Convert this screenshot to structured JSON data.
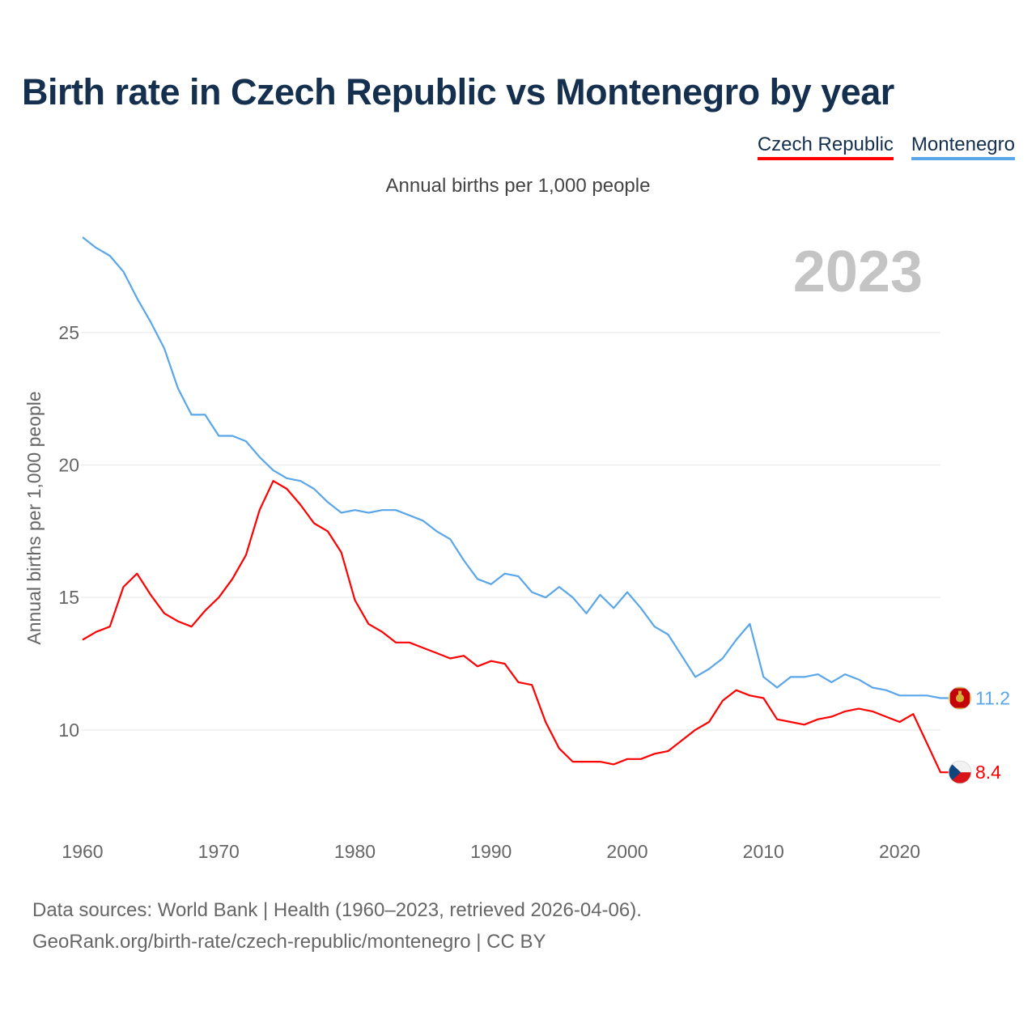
{
  "title": "Birth rate in Czech Republic vs Montenegro by year",
  "subtitle": "Annual births per 1,000 people",
  "footer": {
    "line1": "Data sources: World Bank | Health (1960–2023, retrieved 2026-04-06).",
    "line2": "GeoRank.org/birth-rate/czech-republic/montenegro | CC BY"
  },
  "colors": {
    "czech": "#ff0000",
    "montenegro": "#5aa6e8",
    "title": "#15304f",
    "year_watermark": "#c4c4c4"
  },
  "chart_data": {
    "type": "line",
    "title": "Birth rate in Czech Republic vs Montenegro by year",
    "ylabel": "Annual births per 1,000 people",
    "xlabel": "",
    "year_label": "2023",
    "xlim": [
      1960,
      2023
    ],
    "ylim": [
      7,
      29
    ],
    "x_ticks": [
      1960,
      1970,
      1980,
      1990,
      2000,
      2010,
      2020
    ],
    "y_ticks": [
      10,
      15,
      20,
      25
    ],
    "legend_position": "top-right",
    "x": [
      1960,
      1961,
      1962,
      1963,
      1964,
      1965,
      1966,
      1967,
      1968,
      1969,
      1970,
      1971,
      1972,
      1973,
      1974,
      1975,
      1976,
      1977,
      1978,
      1979,
      1980,
      1981,
      1982,
      1983,
      1984,
      1985,
      1986,
      1987,
      1988,
      1989,
      1990,
      1991,
      1992,
      1993,
      1994,
      1995,
      1996,
      1997,
      1998,
      1999,
      2000,
      2001,
      2002,
      2003,
      2004,
      2005,
      2006,
      2007,
      2008,
      2009,
      2010,
      2011,
      2012,
      2013,
      2014,
      2015,
      2016,
      2017,
      2018,
      2019,
      2020,
      2021,
      2022,
      2023
    ],
    "series": [
      {
        "name": "Czech Republic",
        "color": "#ff0000",
        "end_label": "8.4",
        "values": [
          13.4,
          13.7,
          13.9,
          15.4,
          15.9,
          15.1,
          14.4,
          14.1,
          13.9,
          14.5,
          15.0,
          15.7,
          16.6,
          18.3,
          19.4,
          19.1,
          18.5,
          17.8,
          17.5,
          16.7,
          14.9,
          14.0,
          13.7,
          13.3,
          13.3,
          13.1,
          12.9,
          12.7,
          12.8,
          12.4,
          12.6,
          12.5,
          11.8,
          11.7,
          10.3,
          9.3,
          8.8,
          8.8,
          8.8,
          8.7,
          8.9,
          8.9,
          9.1,
          9.2,
          9.6,
          10.0,
          10.3,
          11.1,
          11.5,
          11.3,
          11.2,
          10.4,
          10.3,
          10.2,
          10.4,
          10.5,
          10.7,
          10.8,
          10.7,
          10.5,
          10.3,
          10.6,
          9.5,
          8.4
        ]
      },
      {
        "name": "Montenegro",
        "color": "#5aa6e8",
        "end_label": "11.2",
        "values": [
          28.6,
          28.2,
          27.9,
          27.3,
          26.3,
          25.4,
          24.4,
          22.9,
          21.9,
          21.9,
          21.1,
          21.1,
          20.9,
          20.3,
          19.8,
          19.5,
          19.4,
          19.1,
          18.6,
          18.2,
          18.3,
          18.2,
          18.3,
          18.3,
          18.1,
          17.9,
          17.5,
          17.2,
          16.4,
          15.7,
          15.5,
          15.9,
          15.8,
          15.2,
          15.0,
          15.4,
          15.0,
          14.4,
          15.1,
          14.6,
          15.2,
          14.6,
          13.9,
          13.6,
          12.8,
          12.0,
          12.3,
          12.7,
          13.4,
          14.0,
          12.0,
          11.6,
          12.0,
          12.0,
          12.1,
          11.8,
          12.1,
          11.9,
          11.6,
          11.5,
          11.3,
          11.3,
          11.3,
          11.2
        ]
      }
    ]
  }
}
